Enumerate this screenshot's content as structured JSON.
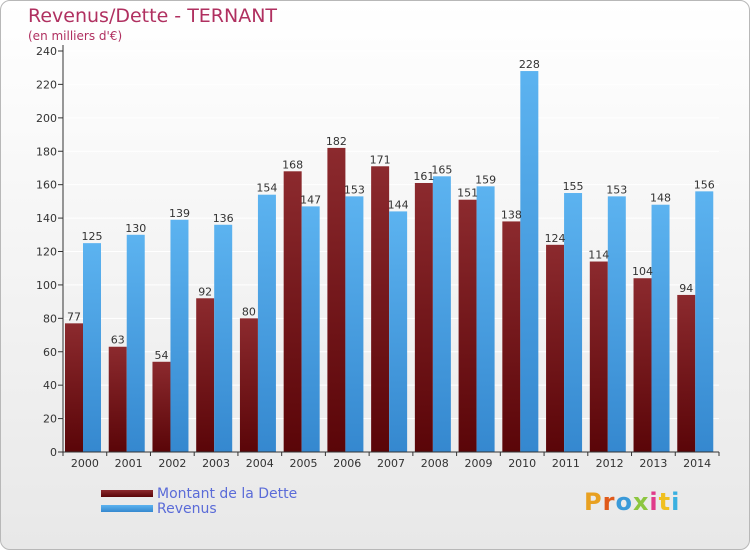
{
  "chart_data": {
    "type": "bar",
    "title": "Revenus/Dette - TERNANT",
    "subtitle": "(en milliers d'€)",
    "categories": [
      "2000",
      "2001",
      "2002",
      "2003",
      "2004",
      "2005",
      "2006",
      "2007",
      "2008",
      "2009",
      "2010",
      "2011",
      "2012",
      "2013",
      "2014"
    ],
    "series": [
      {
        "name": "Montant de la Dette",
        "color": "#7a1a1f",
        "values": [
          77,
          63,
          54,
          92,
          80,
          168,
          182,
          171,
          161,
          151,
          138,
          124,
          114,
          104,
          94
        ],
        "labels": [
          "77",
          "63",
          "54",
          "92",
          "80",
          "168",
          "182",
          "171",
          "161",
          "151",
          "138",
          "124",
          "114",
          "104",
          "94"
        ]
      },
      {
        "name": "Revenus",
        "color": "#4aa3e6",
        "values": [
          125,
          130,
          139,
          136,
          154,
          147,
          153,
          144,
          165,
          159,
          228,
          155,
          153,
          148,
          156
        ],
        "labels": [
          "125",
          "130",
          "139",
          "136",
          "154",
          "147",
          "153",
          "144",
          "165",
          "159",
          "228",
          "155",
          "153",
          "148",
          "156"
        ]
      }
    ],
    "ylim": [
      0,
      240
    ],
    "yticks": [
      0,
      20,
      40,
      60,
      80,
      100,
      120,
      140,
      160,
      180,
      200,
      220,
      240
    ],
    "grid": true,
    "legend_position": "bottom-left"
  },
  "logo_text": "Proxiti"
}
